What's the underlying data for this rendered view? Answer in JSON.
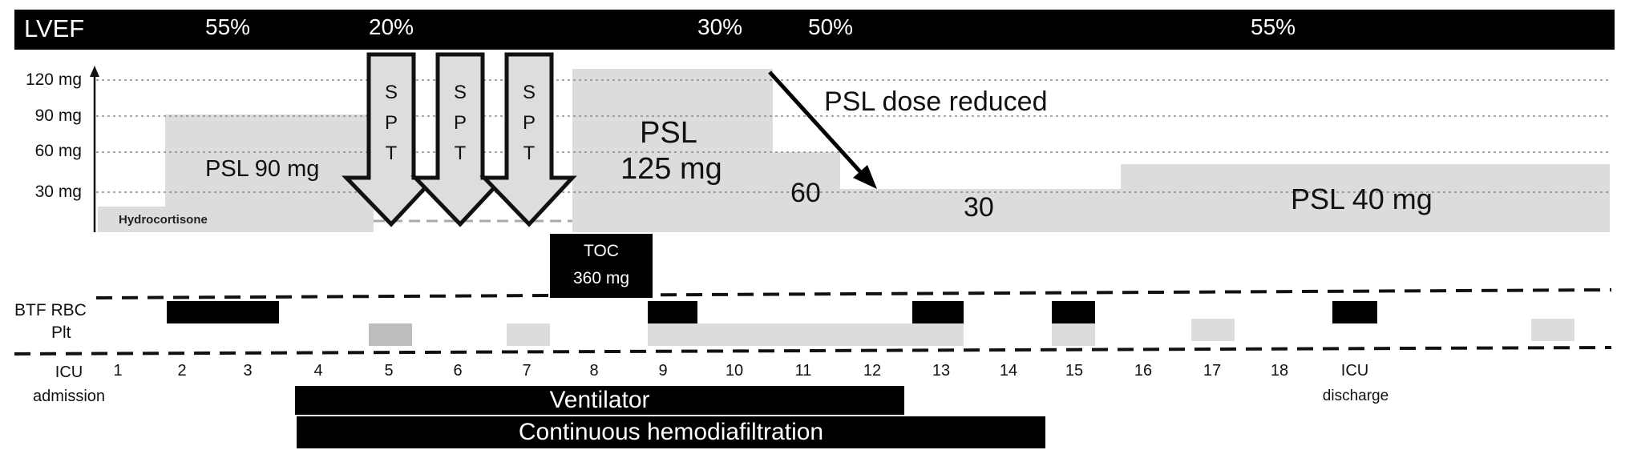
{
  "lvef": {
    "label": "LVEF",
    "values": [
      "55%",
      "20%",
      "30%",
      "50%",
      "55%"
    ]
  },
  "y_axis": {
    "ticks": [
      "120 mg",
      "90 mg",
      "60 mg",
      "30 mg"
    ]
  },
  "steroid": {
    "hydrocortisone": "Hydrocortisone",
    "psl90": "PSL 90 mg",
    "psl125_line1": "PSL",
    "psl125_line2": "125 mg",
    "dose60": "60",
    "dose30": "30",
    "psl40": "PSL 40 mg",
    "reduced": "PSL dose reduced"
  },
  "spt": {
    "letters": [
      "S",
      "P",
      "T"
    ]
  },
  "toc": {
    "line1": "TOC",
    "line2": "360 mg"
  },
  "transfusion": {
    "rbc_label": "BTF RBC",
    "plt_label": "Plt"
  },
  "days": {
    "icu_admission_1": "ICU",
    "icu_admission_2": "admission",
    "numbers": [
      "1",
      "2",
      "3",
      "4",
      "5",
      "6",
      "7",
      "8",
      "9",
      "10",
      "11",
      "12",
      "13",
      "14",
      "15",
      "16",
      "17",
      "18"
    ],
    "icu_discharge_1": "ICU",
    "icu_discharge_2": "discharge"
  },
  "support": {
    "ventilator": "Ventilator",
    "chdf": "Continuous hemodiafiltration"
  },
  "colors": {
    "black": "#000000",
    "light_gray": "#dcdcdc",
    "mid_gray": "#bdbdbd"
  }
}
